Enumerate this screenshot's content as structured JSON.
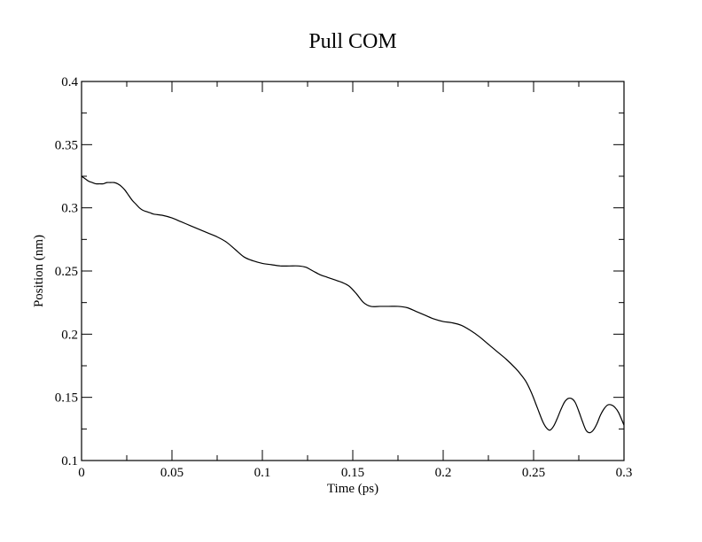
{
  "chart_data": {
    "type": "line",
    "title": "Pull COM",
    "xlabel": "Time (ps)",
    "ylabel": "Position (nm)",
    "xlim": [
      0,
      0.3
    ],
    "ylim": [
      0.1,
      0.4
    ],
    "x_ticks": [
      0,
      0.05,
      0.1,
      0.15,
      0.2,
      0.25,
      0.3
    ],
    "x_tick_labels": [
      "0",
      "0.05",
      "0.1",
      "0.15",
      "0.2",
      "0.25",
      "0.3"
    ],
    "y_ticks": [
      0.1,
      0.15,
      0.2,
      0.25,
      0.3,
      0.35,
      0.4
    ],
    "y_tick_labels": [
      "0.1",
      "0.15",
      "0.2",
      "0.25",
      "0.3",
      "0.35",
      "0.4"
    ],
    "x_minor_step": 0.025,
    "y_minor_step": 0.025,
    "grid": false,
    "line_color": "#000000",
    "series": [
      {
        "x": [
          0,
          0.002,
          0.004,
          0.006,
          0.008,
          0.01,
          0.012,
          0.014,
          0.016,
          0.018,
          0.02,
          0.022,
          0.024,
          0.026,
          0.028,
          0.03,
          0.032,
          0.034,
          0.036,
          0.038,
          0.04,
          0.045,
          0.05,
          0.055,
          0.06,
          0.065,
          0.07,
          0.075,
          0.08,
          0.085,
          0.09,
          0.095,
          0.1,
          0.105,
          0.11,
          0.115,
          0.12,
          0.124,
          0.128,
          0.132,
          0.136,
          0.14,
          0.144,
          0.148,
          0.152,
          0.156,
          0.16,
          0.165,
          0.17,
          0.175,
          0.18,
          0.185,
          0.19,
          0.195,
          0.2,
          0.205,
          0.21,
          0.215,
          0.22,
          0.225,
          0.23,
          0.235,
          0.24,
          0.243,
          0.246,
          0.249,
          0.252,
          0.255,
          0.257,
          0.259,
          0.261,
          0.263,
          0.265,
          0.267,
          0.269,
          0.271,
          0.273,
          0.275,
          0.277,
          0.279,
          0.281,
          0.283,
          0.285,
          0.287,
          0.289,
          0.291,
          0.293,
          0.295,
          0.297,
          0.3
        ],
        "y": [
          0.325,
          0.323,
          0.321,
          0.32,
          0.319,
          0.319,
          0.319,
          0.32,
          0.32,
          0.32,
          0.319,
          0.317,
          0.314,
          0.31,
          0.306,
          0.303,
          0.3,
          0.298,
          0.297,
          0.296,
          0.295,
          0.294,
          0.292,
          0.289,
          0.286,
          0.283,
          0.28,
          0.277,
          0.273,
          0.267,
          0.261,
          0.258,
          0.256,
          0.255,
          0.254,
          0.254,
          0.254,
          0.253,
          0.25,
          0.247,
          0.245,
          0.243,
          0.241,
          0.238,
          0.232,
          0.225,
          0.222,
          0.222,
          0.222,
          0.222,
          0.221,
          0.218,
          0.215,
          0.212,
          0.21,
          0.209,
          0.207,
          0.203,
          0.198,
          0.192,
          0.186,
          0.18,
          0.173,
          0.168,
          0.162,
          0.153,
          0.142,
          0.131,
          0.126,
          0.124,
          0.127,
          0.133,
          0.14,
          0.146,
          0.149,
          0.149,
          0.146,
          0.139,
          0.131,
          0.124,
          0.122,
          0.124,
          0.129,
          0.136,
          0.141,
          0.144,
          0.144,
          0.142,
          0.138,
          0.128
        ]
      }
    ]
  }
}
